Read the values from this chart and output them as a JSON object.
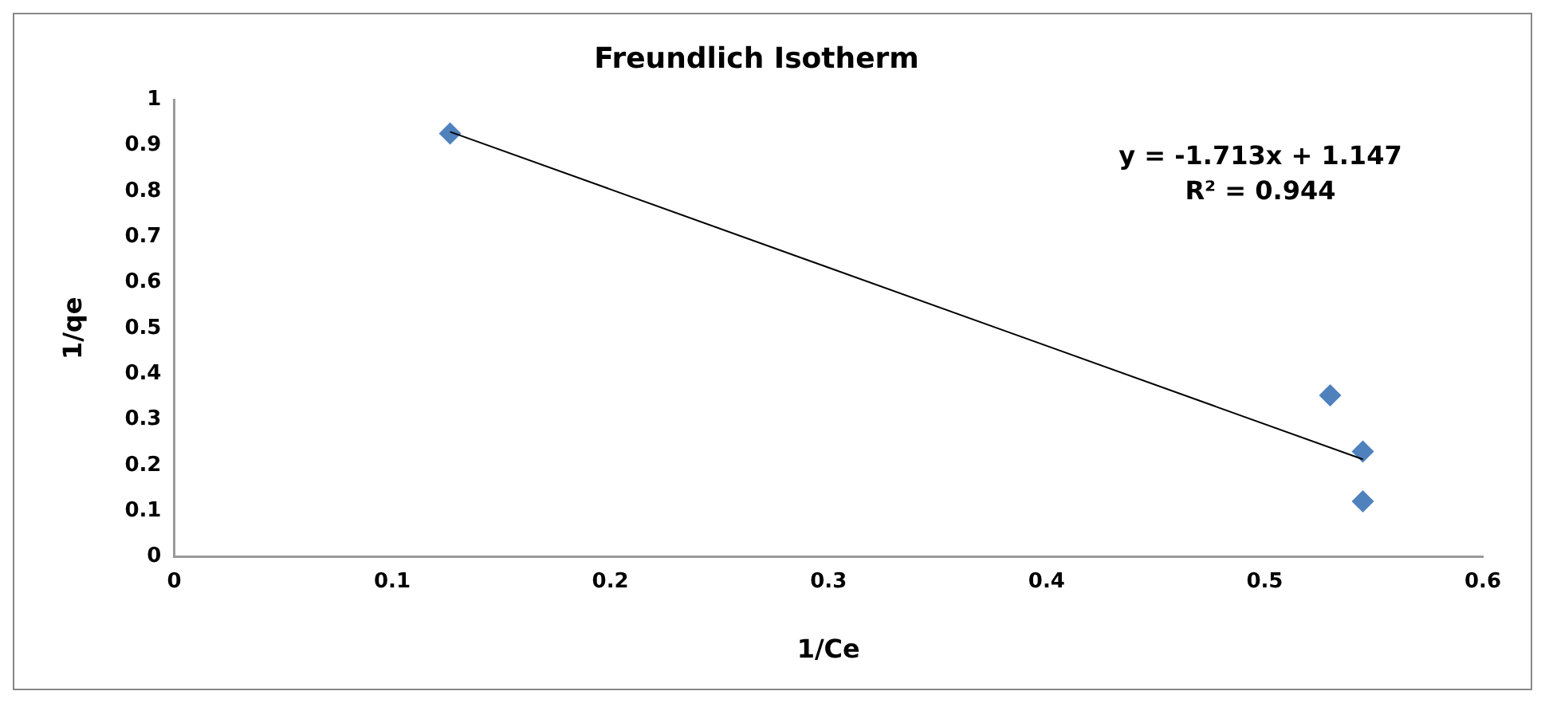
{
  "chart_data": {
    "type": "scatter",
    "title": "Freundlich Isotherm",
    "xlabel": "1/Ce",
    "ylabel": "1/qe",
    "series": [
      {
        "type": "scatter",
        "color": "#4f81bd",
        "x": [
          0.1265,
          0.53,
          0.545,
          0.545
        ],
        "values": [
          0.926,
          0.353,
          0.23,
          0.121
        ],
        "marker": "diamond"
      },
      {
        "type": "line",
        "color": "#000000",
        "x": [
          0.1265,
          0.545
        ],
        "values": [
          0.93,
          0.213
        ],
        "marker": "none",
        "line_style": "solid"
      }
    ],
    "annotations": [
      "y = -1.713x + 1.147",
      "R² = 0.944"
    ],
    "xlim": [
      0,
      0.6
    ],
    "xticks": [
      0,
      0.1,
      0.2,
      0.3,
      0.4,
      0.5,
      0.6
    ],
    "ylim": [
      0,
      1
    ],
    "yticks": [
      0,
      0.1,
      0.2,
      0.3,
      0.4,
      0.5,
      0.6,
      0.7,
      0.8,
      0.9,
      1
    ],
    "grid": false,
    "legend": false
  }
}
